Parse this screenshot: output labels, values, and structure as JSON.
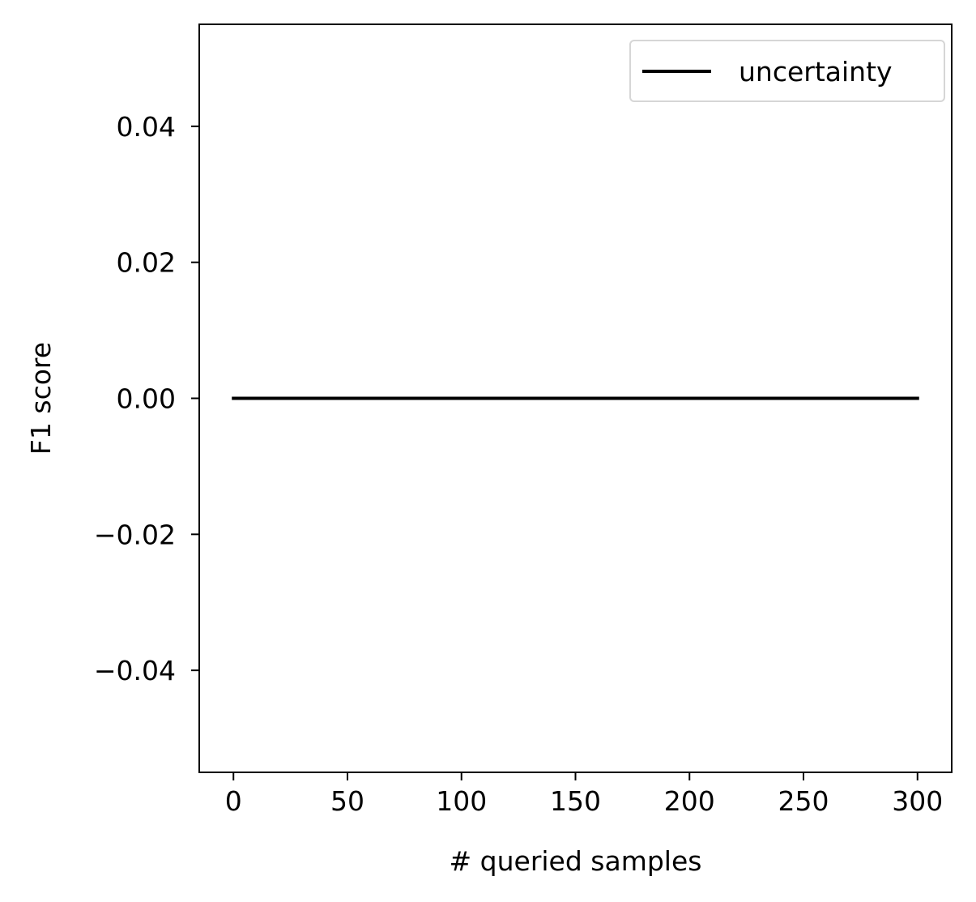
{
  "chart_data": {
    "type": "line",
    "title": "",
    "xlabel": "# queried samples",
    "ylabel": "F1 score",
    "xlim": [
      -15,
      315
    ],
    "ylim": [
      -0.055,
      0.055
    ],
    "xticks": [
      0,
      50,
      100,
      150,
      200,
      250,
      300
    ],
    "xtick_labels": [
      "0",
      "50",
      "100",
      "150",
      "200",
      "250",
      "300"
    ],
    "yticks": [
      0.04,
      0.02,
      0.0,
      -0.02,
      -0.04
    ],
    "ytick_labels": [
      "0.04",
      "0.02",
      "0.00",
      "−0.02",
      "−0.04"
    ],
    "grid": false,
    "legend_position": "top-right",
    "series": [
      {
        "name": "uncertainty",
        "color": "#000000",
        "x": [
          0,
          300
        ],
        "y": [
          0.0,
          0.0
        ]
      }
    ]
  }
}
